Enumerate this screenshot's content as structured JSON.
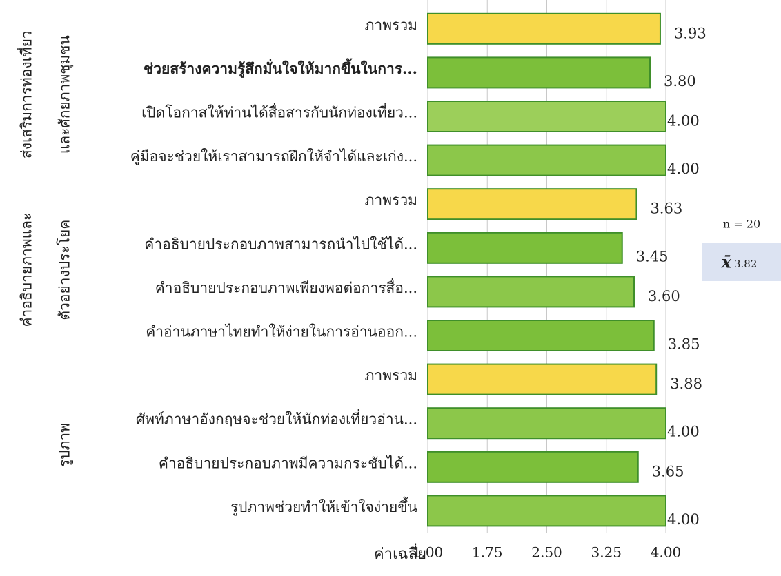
{
  "chart_data": {
    "type": "barh",
    "categories": [
      "ภาพรวม",
      "ช่วยสร้างความรู้สึกมั่นใจให้มากขึ้นในการ...",
      "เปิดโอกาสให้ท่านได้สื่อสารกับนักท่องเที่ยว...",
      "คู่มือจะช่วยให้เราสามารถฝึกให้จำได้และเก่ง...",
      "ภาพรวม",
      "คำอธิบายประกอบภาพสามารถนำไปใช้ได้...",
      "คำอธิบายประกอบภาพเพียงพอต่อการสื่อ...",
      "คำอ่านภาษาไทยทำให้ง่ายในการอ่านออก...",
      "ภาพรวม",
      "ศัพท์ภาษาอังกฤษจะช่วยให้นักท่องเที่ยวอ่าน...",
      "คำอธิบายประกอบภาพมีความกระชับได้...",
      "รูปภาพช่วยทำให้เข้าใจง่ายขึ้น"
    ],
    "values": [
      3.93,
      3.8,
      4.0,
      4.0,
      3.63,
      3.45,
      3.6,
      3.85,
      3.88,
      4.0,
      3.65,
      4.0
    ],
    "value_labels": [
      "3.93",
      "3.80",
      "4.00",
      "4.00",
      "3.63",
      "3.45",
      "3.60",
      "3.85",
      "3.88",
      "4.00",
      "3.65",
      "4.00"
    ],
    "colors": [
      "#f7d84a",
      "#7cbf3a",
      "#9ccf5a",
      "#8cc74a",
      "#f7d84a",
      "#7cbf3a",
      "#8cc74a",
      "#7cbf3a",
      "#f7d84a",
      "#8cc74a",
      "#7cbf3a",
      "#8cc74a"
    ],
    "groups": [
      {
        "lines": [
          "ส่งเสริมการท่องเที่ยว",
          "และศักยภาพชุมชน"
        ],
        "rows": [
          0,
          3
        ]
      },
      {
        "lines": [
          "คำอธิบายภาพและ",
          "ตัวอย่างประโยค"
        ],
        "rows": [
          4,
          7
        ]
      },
      {
        "lines": [
          "รูปภาพ"
        ],
        "rows": [
          8,
          11
        ]
      }
    ],
    "xlabel": "ค่าเฉลี่ย",
    "xlim": [
      1,
      4
    ],
    "xticks": [
      {
        "value": 1,
        "label": "1.00"
      },
      1.75,
      {
        "value": 2.5,
        "label": "2.50"
      },
      3.25,
      {
        "value": 4,
        "label": "4.00"
      }
    ],
    "grid": true,
    "annotation": "n = 20",
    "mean": {
      "symbol": "x̄",
      "value": 3.82
    }
  }
}
